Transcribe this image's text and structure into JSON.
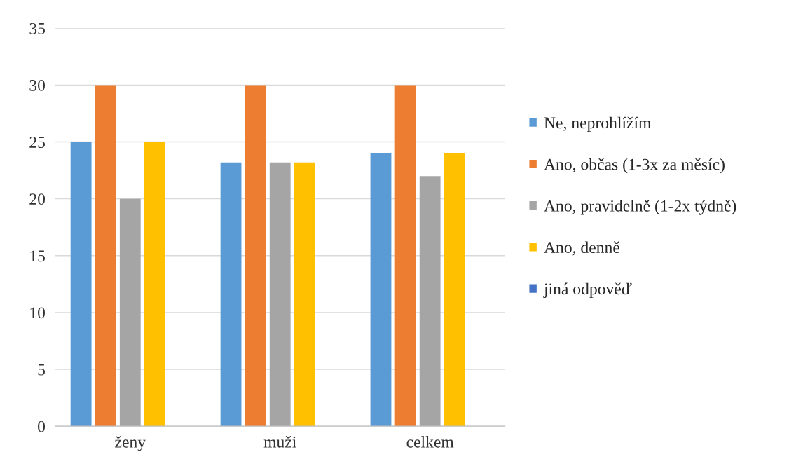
{
  "chart_data": {
    "type": "bar",
    "categories": [
      "ženy",
      "muži",
      "celkem"
    ],
    "series": [
      {
        "name": "Ne, neprohlížím",
        "color": "#5b9bd5",
        "values": [
          25,
          23.2,
          24
        ]
      },
      {
        "name": "Ano, občas (1-3x za měsíc)",
        "color": "#ed7d31",
        "values": [
          30,
          30,
          30
        ]
      },
      {
        "name": "Ano, pravidelně (1-2x týdně)",
        "color": "#a5a5a5",
        "values": [
          20,
          23.2,
          22
        ]
      },
      {
        "name": "Ano, denně",
        "color": "#ffc000",
        "values": [
          25,
          23.2,
          24
        ]
      },
      {
        "name": "jiná odpověď",
        "color": "#4472c4",
        "values": [
          0,
          0,
          0
        ]
      }
    ],
    "ylim": [
      0,
      35
    ],
    "yticks": [
      0,
      5,
      10,
      15,
      20,
      25,
      30,
      35
    ],
    "grid": "y",
    "legend": "right"
  }
}
